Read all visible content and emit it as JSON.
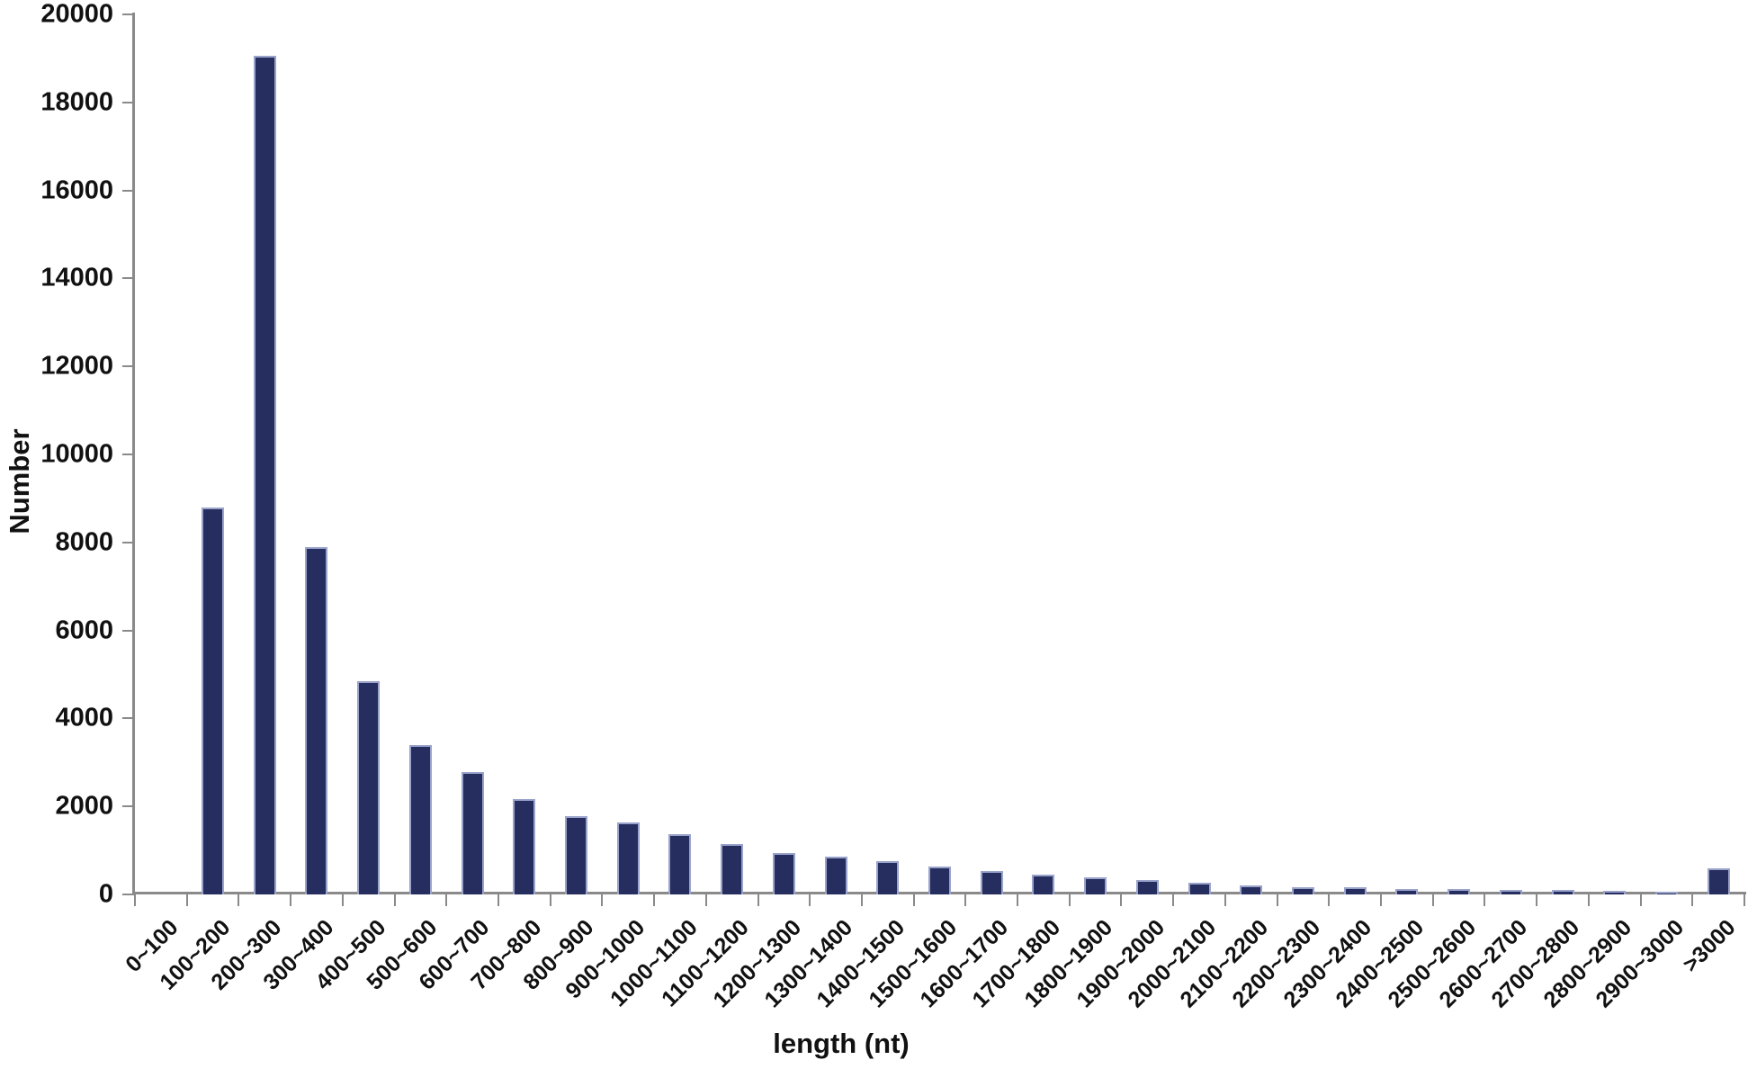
{
  "chart_data": {
    "type": "bar",
    "title": "",
    "xlabel": "length (nt)",
    "ylabel": "Number",
    "categories": [
      "0~100",
      "100~200",
      "200~300",
      "300~400",
      "400~500",
      "500~600",
      "600~700",
      "700~800",
      "800~900",
      "900~1000",
      "1000~1100",
      "1100~1200",
      "1200~1300",
      "1300~1400",
      "1400~1500",
      "1500~1600",
      "1600~1700",
      "1700~1800",
      "1800~1900",
      "1900~2000",
      "2000~2100",
      "2100~2200",
      "2200~2300",
      "2300~2400",
      "2400~2500",
      "2500~2600",
      "2600~2700",
      "2700~2800",
      "2800~2900",
      "2900~3000",
      ">3000"
    ],
    "values": [
      0,
      8800,
      19050,
      7900,
      4850,
      3390,
      2790,
      2160,
      1770,
      1640,
      1370,
      1140,
      950,
      860,
      750,
      640,
      530,
      450,
      380,
      320,
      270,
      210,
      170,
      160,
      125,
      130,
      100,
      100,
      75,
      70,
      600
    ],
    "ylim": [
      0,
      20000
    ],
    "ytick_step": 2000,
    "ytick_labels": [
      "0",
      "2000",
      "4000",
      "6000",
      "8000",
      "10000",
      "12000",
      "14000",
      "16000",
      "18000",
      "20000"
    ],
    "grid": "off",
    "legend": "none",
    "colors": {
      "bar_fill": "#262d5f",
      "bar_border": "#9aa3ca",
      "axis": "#8a8a8a",
      "text": "#111111",
      "background": "#ffffff"
    }
  }
}
